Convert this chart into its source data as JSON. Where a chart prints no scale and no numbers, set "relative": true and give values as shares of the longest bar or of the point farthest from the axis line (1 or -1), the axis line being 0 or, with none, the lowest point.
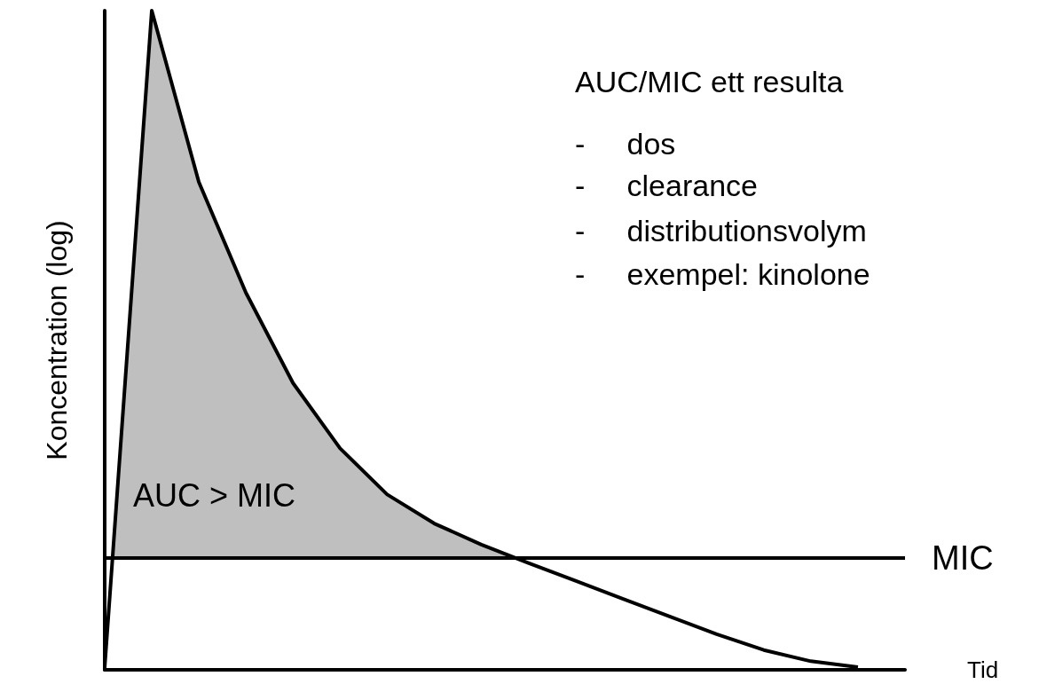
{
  "chart_data": {
    "type": "area",
    "relative": true,
    "ylabel": "Koncentration (log)",
    "xlabel": "Tid",
    "categories": [
      null,
      null,
      null,
      null,
      null,
      null,
      null,
      null,
      null,
      null,
      null,
      null,
      null,
      null,
      null,
      null,
      null,
      null
    ],
    "series": [
      {
        "color": "#bfbfbf",
        "values": [
          0.004,
          1.0,
          0.74,
          0.572,
          0.435,
          0.336,
          0.266,
          0.222,
          0.19,
          0.162,
          0.135,
          0.108,
          0.081,
          0.054,
          0.03,
          0.013,
          0.004,
          null
        ]
      }
    ],
    "ref_lines": [
      {
        "axis": "y",
        "value": 0.172,
        "label": "MIC",
        "color": "#000000",
        "line_style": "solid"
      }
    ],
    "marker": "none",
    "annotations": [
      "AUC > MIC",
      "AUC/MIC ett resulta",
      "- dos",
      "- clearance",
      "- distributionsvolym",
      "- exempel: kinolone"
    ]
  }
}
